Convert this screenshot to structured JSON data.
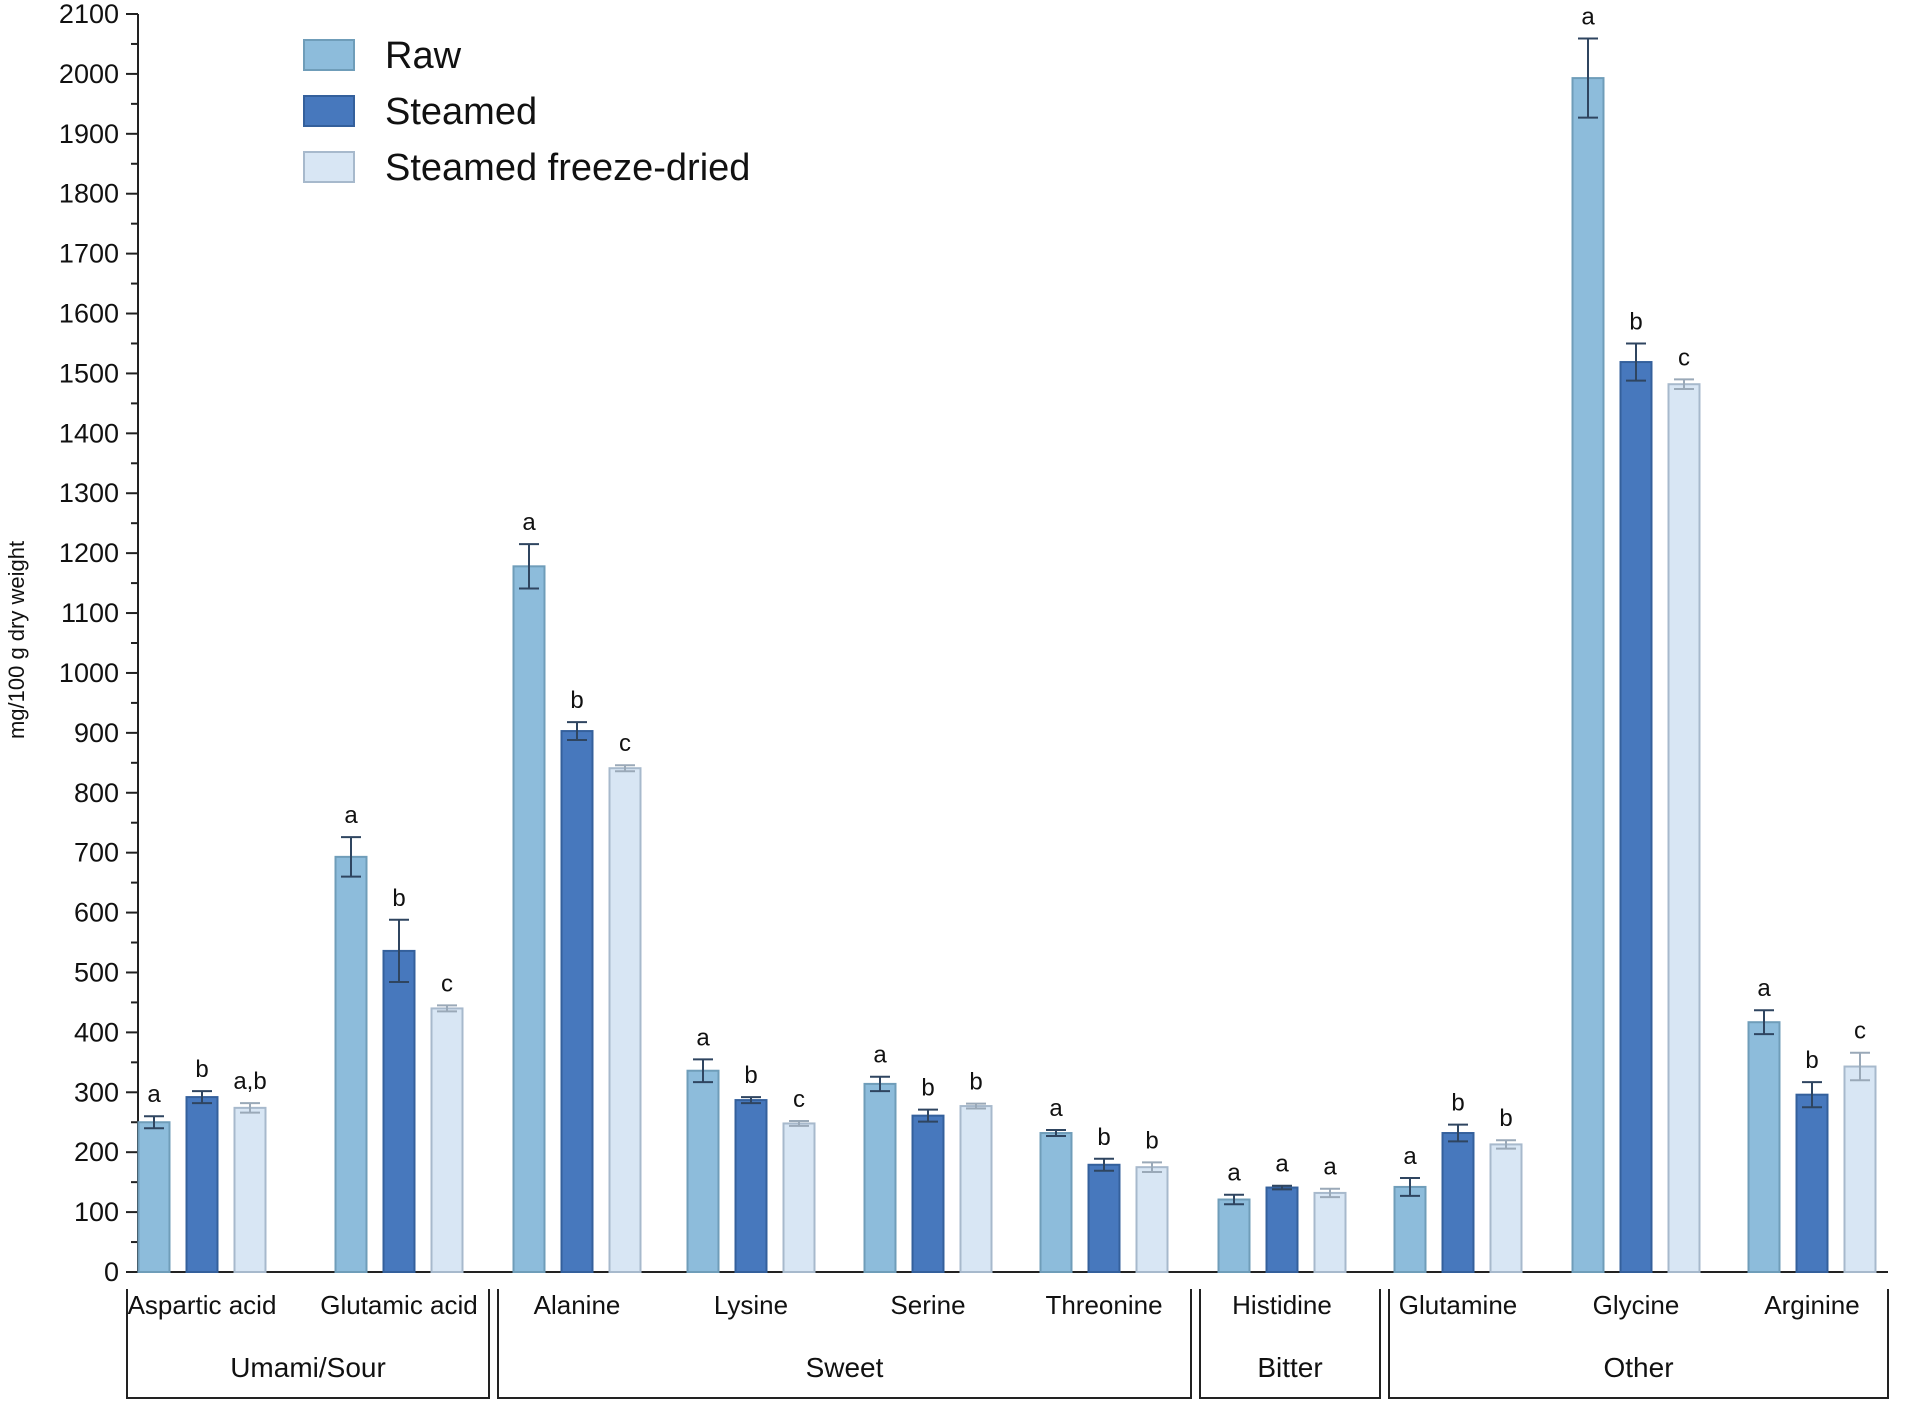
{
  "chart_data": {
    "type": "bar",
    "ylabel": "mg/100 g dry weight",
    "ylim": [
      0,
      2100
    ],
    "yticks": [
      0,
      100,
      200,
      300,
      400,
      500,
      600,
      700,
      800,
      900,
      1000,
      1100,
      1200,
      1300,
      1400,
      1500,
      1600,
      1700,
      1800,
      1900,
      2000,
      2100
    ],
    "legend_position": "top-left",
    "categories": [
      "Aspartic acid",
      "Glutamic acid",
      "Alanine",
      "Lysine",
      "Serine",
      "Threonine",
      "Histidine",
      "Glutamine",
      "Glycine",
      "Arginine"
    ],
    "groups": [
      {
        "label": "Umami/Sour",
        "categories": [
          "Aspartic acid",
          "Glutamic acid"
        ]
      },
      {
        "label": "Sweet",
        "categories": [
          "Alanine",
          "Lysine",
          "Serine",
          "Threonine"
        ]
      },
      {
        "label": "Bitter",
        "categories": [
          "Histidine"
        ]
      },
      {
        "label": "Other",
        "categories": [
          "Glutamine",
          "Glycine",
          "Arginine"
        ]
      }
    ],
    "series": [
      {
        "name": "Raw",
        "color": "#8dbcdb",
        "stroke": "#6f9db9",
        "values": [
          250,
          693,
          1178,
          336,
          314,
          232,
          121,
          142,
          1993,
          417
        ],
        "errors": [
          10,
          33,
          37,
          19,
          12,
          5,
          8,
          15,
          66,
          20
        ],
        "letters": [
          "a",
          "a",
          "a",
          "a",
          "a",
          "a",
          "a",
          "a",
          "a",
          "a"
        ]
      },
      {
        "name": "Steamed",
        "color": "#4778bd",
        "stroke": "#34609c",
        "values": [
          292,
          536,
          903,
          287,
          261,
          179,
          141,
          232,
          1519,
          296
        ],
        "errors": [
          10,
          52,
          15,
          5,
          10,
          10,
          3,
          14,
          31,
          21
        ],
        "letters": [
          "b",
          "b",
          "b",
          "b",
          "b",
          "b",
          "a",
          "b",
          "b",
          "b"
        ]
      },
      {
        "name": "Steamed freeze-dried",
        "color": "#d8e6f4",
        "stroke": "#a7b9cc",
        "values": [
          274,
          440,
          841,
          248,
          277,
          175,
          132,
          213,
          1482,
          343
        ],
        "errors": [
          8,
          5,
          5,
          4,
          4,
          8,
          7,
          7,
          8,
          23
        ],
        "letters": [
          "a,b",
          "c",
          "c",
          "c",
          "b",
          "b",
          "a",
          "b",
          "c",
          "c"
        ]
      }
    ]
  }
}
